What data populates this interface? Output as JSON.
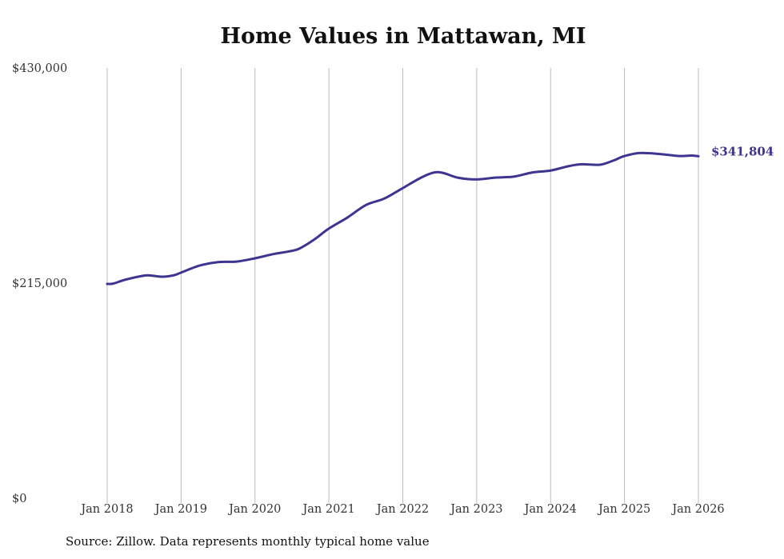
{
  "chart_data": {
    "type": "line",
    "title": "Home Values in Mattawan, MI",
    "xlabel": "",
    "ylabel": "",
    "ylim": [
      0,
      430000
    ],
    "xlim": [
      2018,
      2026
    ],
    "y_ticks": [
      0,
      215000,
      430000
    ],
    "y_tick_labels": [
      "$0",
      "$215,000",
      "$430,000"
    ],
    "x_ticks": [
      2018,
      2019,
      2020,
      2021,
      2022,
      2023,
      2024,
      2025,
      2026
    ],
    "x_tick_labels": [
      "Jan 2018",
      "Jan 2019",
      "Jan 2020",
      "Jan 2021",
      "Jan 2022",
      "Jan 2023",
      "Jan 2024",
      "Jan 2025",
      "Jan 2026"
    ],
    "grid": "vertical",
    "legend": "none",
    "series": [
      {
        "name": "Typical home value",
        "color": "#3d3590",
        "x": [
          2018.0,
          2018.08,
          2018.25,
          2018.5,
          2018.6,
          2018.75,
          2018.9,
          2019.0,
          2019.25,
          2019.5,
          2019.75,
          2020.0,
          2020.25,
          2020.45,
          2020.6,
          2020.8,
          2021.0,
          2021.25,
          2021.5,
          2021.75,
          2022.0,
          2022.25,
          2022.42,
          2022.55,
          2022.75,
          2023.0,
          2023.25,
          2023.5,
          2023.75,
          2024.0,
          2024.25,
          2024.42,
          2024.67,
          2024.85,
          2025.0,
          2025.2,
          2025.45,
          2025.75,
          2025.9,
          2026.0
        ],
        "values": [
          214200,
          214500,
          218500,
          222500,
          222500,
          221400,
          222800,
          225500,
          232500,
          236000,
          236500,
          239800,
          244000,
          246500,
          249500,
          258500,
          269500,
          280500,
          293000,
          299500,
          310000,
          320500,
          325500,
          325000,
          320300,
          318600,
          320400,
          321400,
          325500,
          327500,
          332000,
          333800,
          333300,
          337500,
          342000,
          345000,
          344200,
          342000,
          342500,
          341804
        ]
      }
    ],
    "annotations": [
      {
        "text": "$341,804",
        "x": 2026.0,
        "y": 341804
      }
    ]
  },
  "source": "Source: Zillow. Data represents monthly typical home value"
}
